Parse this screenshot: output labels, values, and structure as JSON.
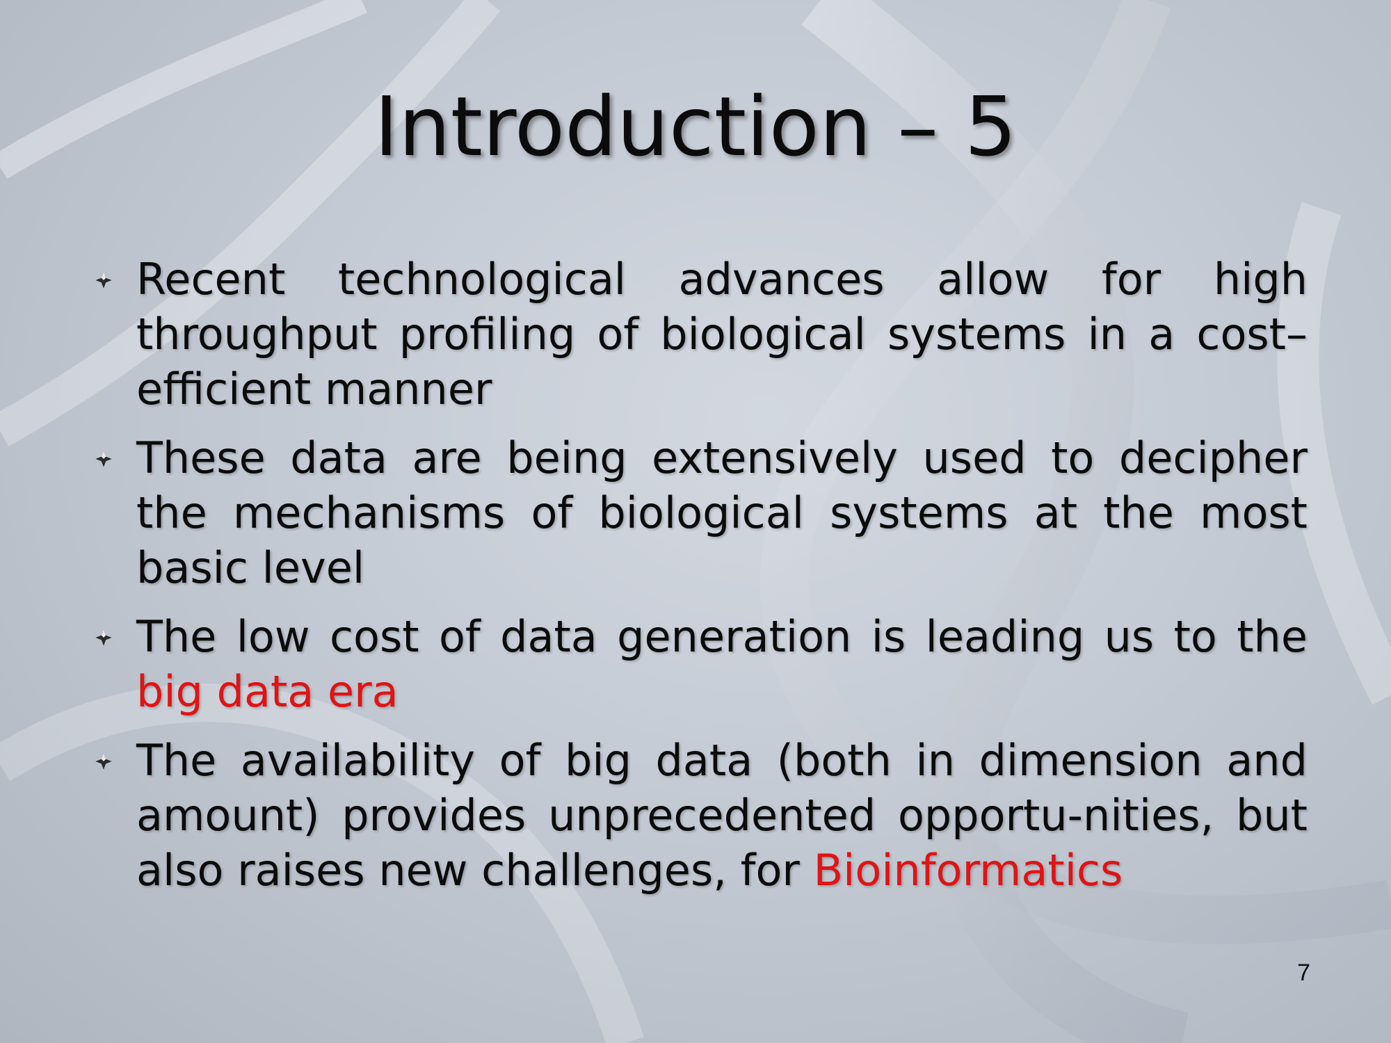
{
  "slide": {
    "title": "Introduction – 5",
    "page_number": "7",
    "bullets": [
      {
        "text": "Recent technological advances allow for high throughput profiling of biological systems in a cost–efficient manner"
      },
      {
        "text": "These data are being extensively used to decipher the mechanisms of biological systems at the most basic level"
      },
      {
        "text": "The low cost of data generation is leading us to the ",
        "highlight": "big data era"
      },
      {
        "text": "The availability of big data (both in dimension and amount) provides unprecedented opportu-nities, but also raises new challenges, for ",
        "highlight": "Bioinformatics"
      }
    ],
    "colors": {
      "text": "#0b0b0b",
      "highlight": "#e01414",
      "background": "#c4cad4"
    },
    "icons": {
      "bullet": "four-point-star-bullet-icon",
      "background": "dna-helix-background-image"
    }
  }
}
